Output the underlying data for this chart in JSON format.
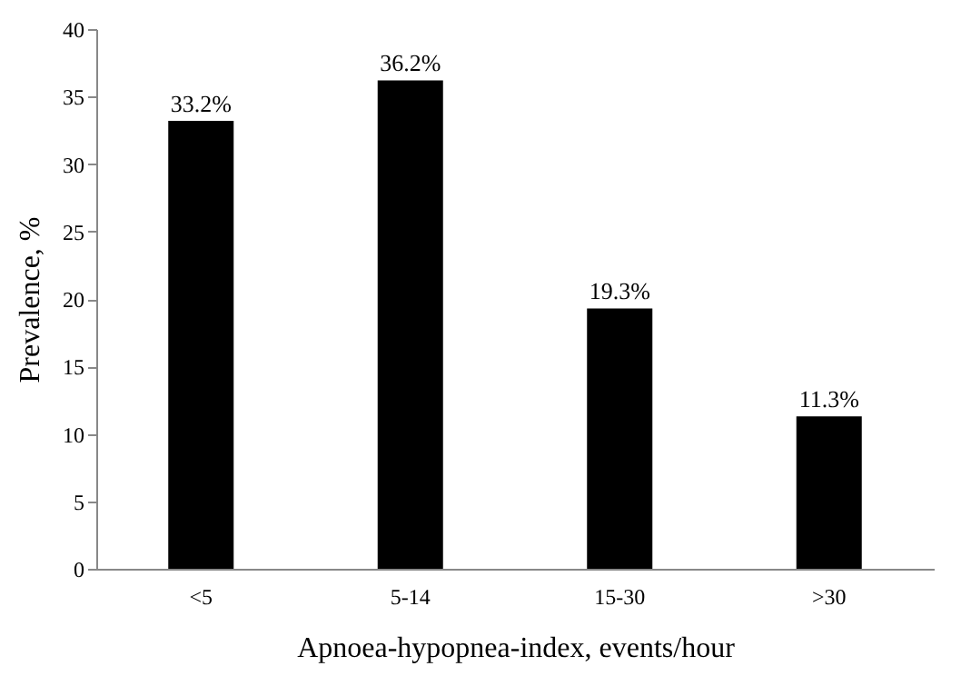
{
  "chart_data": {
    "type": "bar",
    "xlabel": "Apnoea-hypopnea-index, events/hour",
    "ylabel": "Prevalence, %",
    "categories": [
      "<5",
      "5-14",
      "15-30",
      ">30"
    ],
    "values": [
      33.2,
      36.2,
      19.3,
      11.3
    ],
    "color": "#000000",
    "value_labels": [
      "33.2%",
      "36.2%",
      "19.3%",
      "11.3%"
    ],
    "ylim": [
      0,
      40
    ],
    "yticks": [
      0,
      5,
      10,
      15,
      20,
      25,
      30,
      35,
      40
    ],
    "grid": false
  }
}
